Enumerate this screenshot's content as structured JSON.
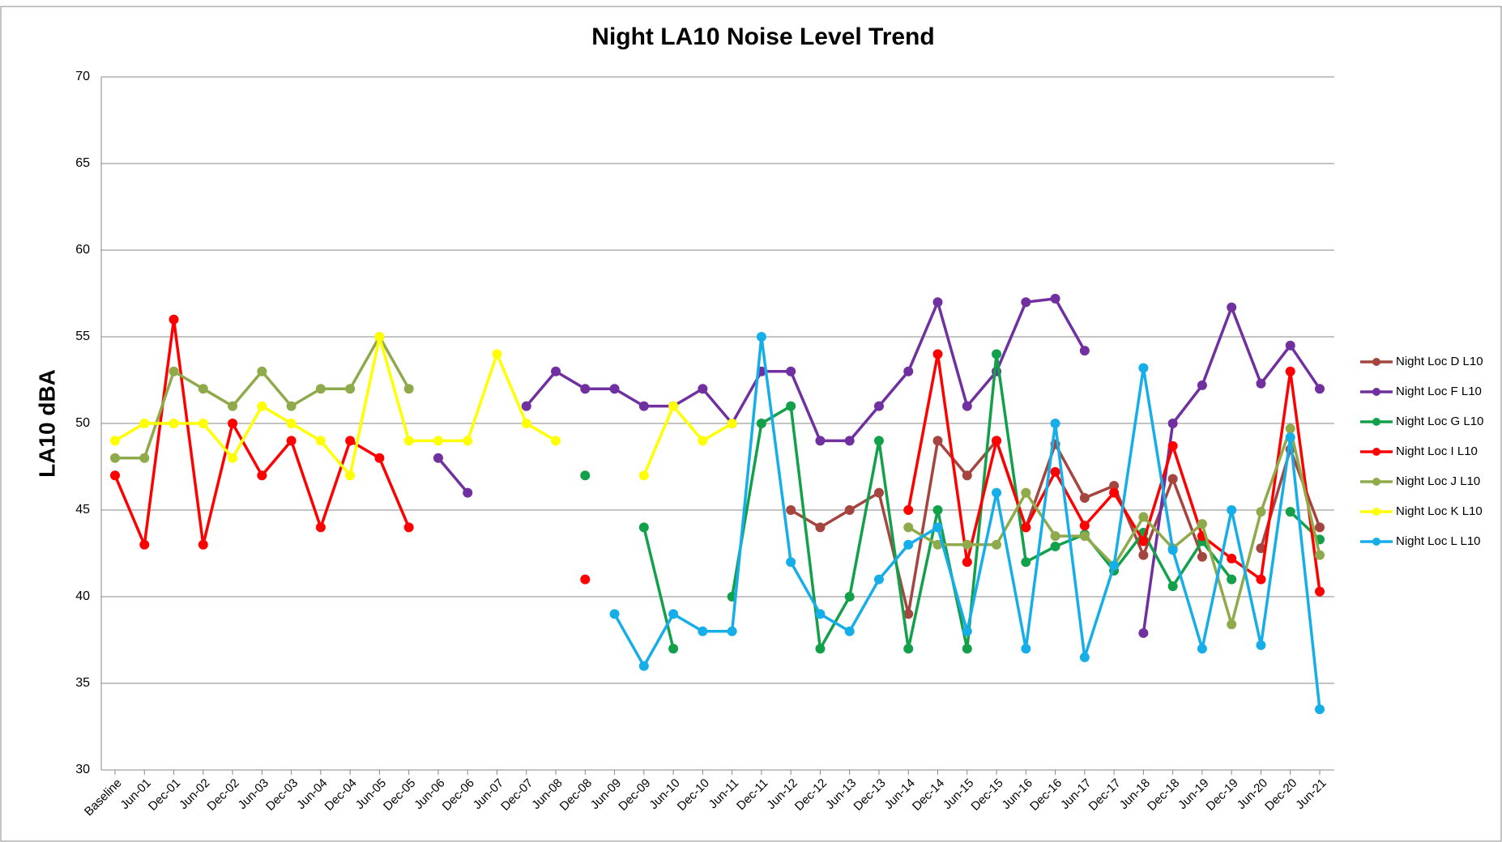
{
  "chart_data": {
    "type": "line",
    "title": "Night LA10 Noise Level Trend",
    "y_label": "LA10 dBA",
    "categories": [
      "Baseline",
      "Jun-01",
      "Dec-01",
      "Jun-02",
      "Dec-02",
      "Jun-03",
      "Dec-03",
      "Jun-04",
      "Dec-04",
      "Jun-05",
      "Dec-05",
      "Jun-06",
      "Dec-06",
      "Jun-07",
      "Dec-07",
      "Jun-08",
      "Dec-08",
      "Jun-09",
      "Dec-09",
      "Jun-10",
      "Dec-10",
      "Jun-11",
      "Dec-11",
      "Jun-12",
      "Dec-12",
      "Jun-13",
      "Dec-13",
      "Jun-14",
      "Dec-14",
      "Jun-15",
      "Dec-15",
      "Jun-16",
      "Dec-16",
      "Jun-17",
      "Dec-17",
      "Jun-18",
      "Dec-18",
      "Jun-19",
      "Dec-19",
      "Jun-20",
      "Dec-20",
      "Jun-21"
    ],
    "ylim": [
      30,
      70
    ],
    "yticks": [
      30,
      35,
      40,
      45,
      50,
      55,
      60,
      65,
      70
    ],
    "grid": true,
    "legend": "right",
    "series": [
      {
        "name": "Night Loc D L10",
        "color": "#a5453f",
        "values": [
          null,
          null,
          null,
          null,
          null,
          null,
          null,
          null,
          null,
          null,
          null,
          null,
          null,
          null,
          null,
          null,
          null,
          null,
          null,
          null,
          null,
          null,
          null,
          45,
          44,
          45,
          46,
          39,
          49,
          47,
          49,
          44,
          48.8,
          45.7,
          46.4,
          42.4,
          46.8,
          42.3,
          null,
          42.8,
          48.5,
          44
        ]
      },
      {
        "name": "Night Loc F L10",
        "color": "#7030a0",
        "values": [
          null,
          null,
          null,
          null,
          null,
          null,
          null,
          null,
          null,
          null,
          null,
          48,
          46,
          null,
          51,
          53,
          52,
          52,
          51,
          51,
          52,
          50,
          53,
          53,
          49,
          49,
          51,
          53,
          57,
          51,
          53,
          57,
          57.2,
          54.2,
          null,
          37.9,
          50,
          52.2,
          56.7,
          52.3,
          54.5,
          52
        ]
      },
      {
        "name": "Night Loc G L10",
        "color": "#13a04a",
        "values": [
          null,
          null,
          null,
          null,
          null,
          null,
          null,
          null,
          null,
          null,
          null,
          null,
          null,
          null,
          null,
          null,
          47,
          null,
          44,
          37,
          null,
          40,
          50,
          51,
          37,
          40,
          49,
          37,
          45,
          37,
          54,
          42,
          42.9,
          43.6,
          41.5,
          43.7,
          40.6,
          43.2,
          41,
          null,
          44.9,
          43.3
        ]
      },
      {
        "name": "Night Loc I L10",
        "color": "#ff0000",
        "values": [
          47,
          43,
          56,
          43,
          50,
          47,
          49,
          44,
          49,
          48,
          44,
          null,
          null,
          null,
          null,
          null,
          41,
          null,
          null,
          null,
          null,
          null,
          null,
          null,
          null,
          null,
          null,
          45,
          54,
          42,
          49,
          44,
          47.2,
          44.1,
          46,
          43.2,
          48.7,
          43.5,
          42.2,
          41,
          53,
          40.3
        ]
      },
      {
        "name": "Night Loc J L10",
        "color": "#8faa4a",
        "values": [
          48,
          48,
          53,
          52,
          51,
          53,
          51,
          52,
          52,
          55,
          52,
          null,
          null,
          null,
          null,
          null,
          null,
          null,
          null,
          null,
          null,
          null,
          null,
          null,
          null,
          null,
          null,
          44,
          43,
          43,
          43,
          46,
          43.5,
          43.5,
          41.8,
          44.6,
          42.8,
          44.2,
          38.4,
          44.9,
          49.7,
          42.4
        ]
      },
      {
        "name": "Night Loc K L10",
        "color": "#ffff00",
        "values": [
          49,
          50,
          50,
          50,
          48,
          51,
          50,
          49,
          47,
          55,
          49,
          49,
          49,
          54,
          50,
          49,
          null,
          null,
          47,
          51,
          49,
          50,
          null,
          null,
          null,
          null,
          null,
          null,
          null,
          null,
          null,
          null,
          null,
          null,
          null,
          null,
          null,
          null,
          null,
          null,
          null,
          null
        ]
      },
      {
        "name": "Night Loc L L10",
        "color": "#16aee8",
        "values": [
          null,
          null,
          null,
          null,
          null,
          null,
          null,
          null,
          null,
          null,
          null,
          null,
          null,
          null,
          null,
          null,
          null,
          39,
          36,
          39,
          38,
          38,
          55,
          42,
          39,
          38,
          41,
          43,
          44,
          38,
          46,
          37,
          50,
          36.5,
          41.8,
          53.2,
          42.7,
          37,
          45,
          37.2,
          49.2,
          33.5
        ]
      }
    ]
  }
}
